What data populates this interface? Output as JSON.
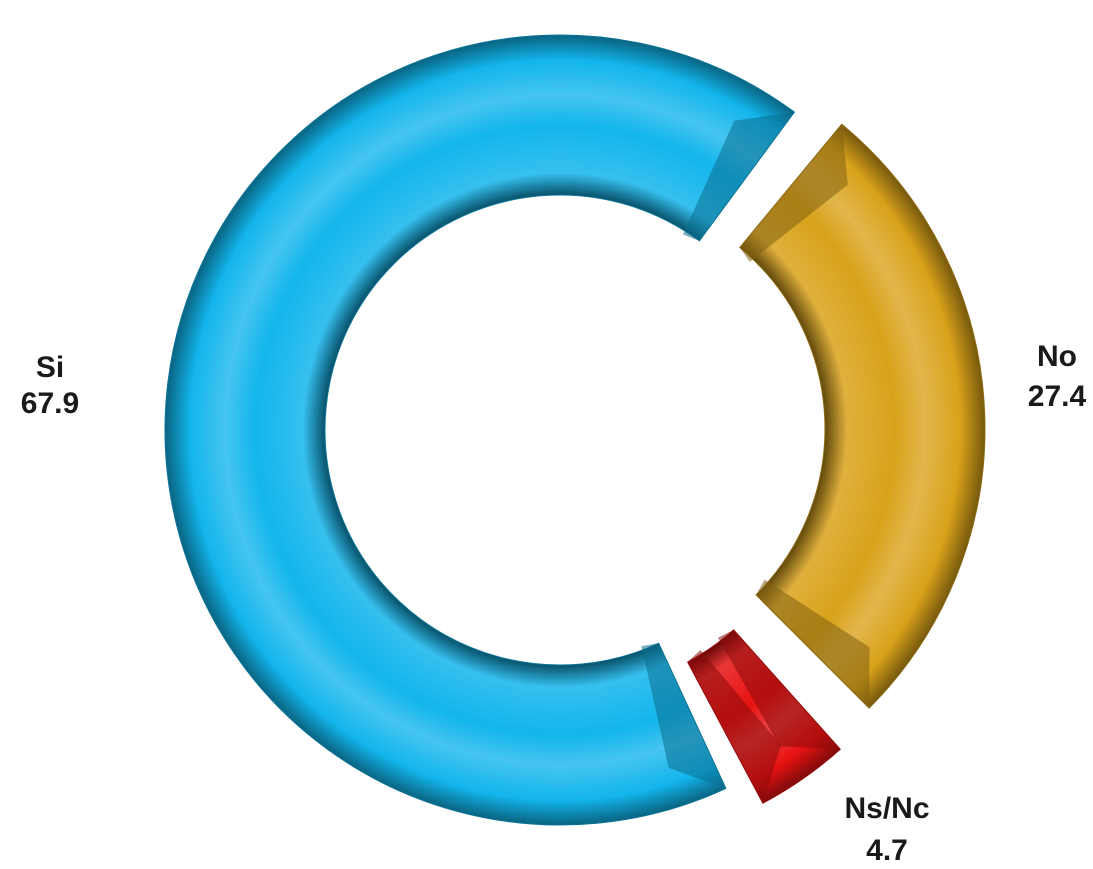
{
  "chart_data": {
    "type": "pie",
    "style": "donut-3d",
    "title": "",
    "slices": [
      {
        "label": "Si",
        "value": 67.9,
        "value_text": "67.9",
        "color": "#12b5ec"
      },
      {
        "label": "No",
        "value": 27.4,
        "value_text": "27.4",
        "color": "#d9a21a"
      },
      {
        "label": "Ns/Nc",
        "value": 4.7,
        "value_text": "4.7",
        "color": "#e81212"
      }
    ],
    "legend": "none",
    "data_labels": "outside"
  }
}
